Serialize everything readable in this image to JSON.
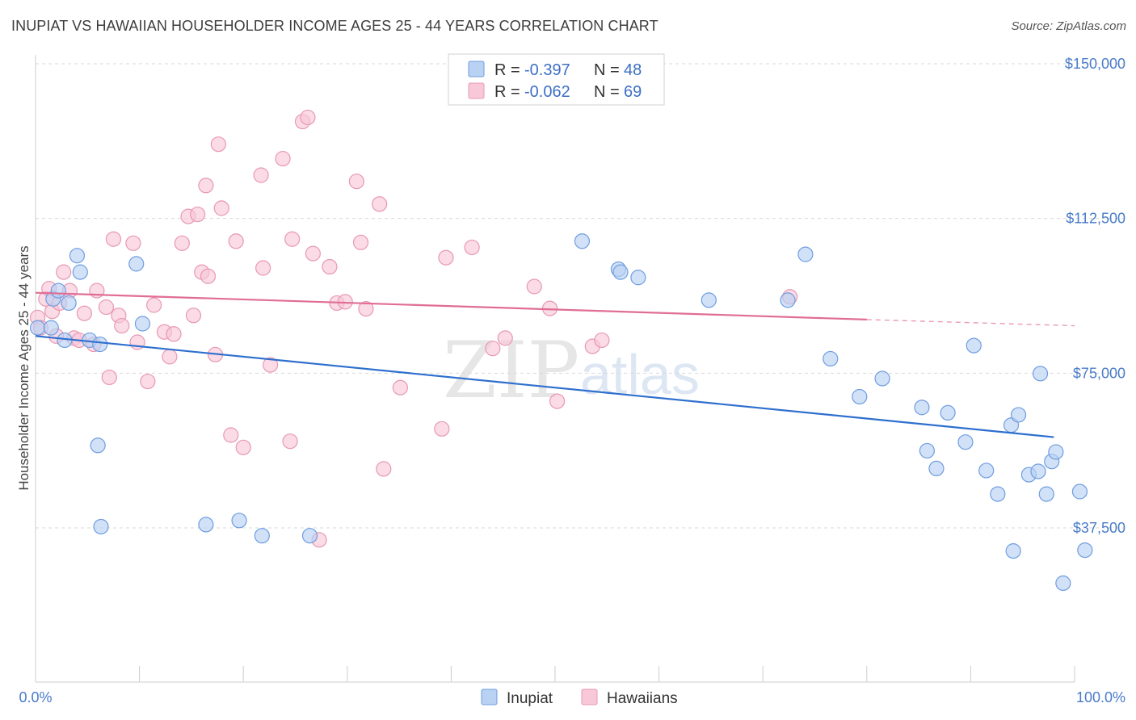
{
  "title": "INUPIAT VS HAWAIIAN HOUSEHOLDER INCOME AGES 25 - 44 YEARS CORRELATION CHART",
  "source": "Source: ZipAtlas.com",
  "watermark": {
    "zip": "ZIP",
    "atlas": "atlas"
  },
  "colors": {
    "inupiat_fill": "#b9d1f2",
    "inupiat_stroke": "#6f9de0",
    "inupiat_line": "#2e6fce",
    "hawaiian_fill": "#f8c8d8",
    "hawaiian_stroke": "#e898b4",
    "hawaiian_line": "#e06d95",
    "grid": "#d9d9d9",
    "axis_label": "#4a7cc9"
  },
  "legend": {
    "rows": [
      {
        "r_label": "R = ",
        "r_value": "-0.397",
        "n_label": "N = ",
        "n_value": "48"
      },
      {
        "r_label": "R = ",
        "r_value": "-0.062",
        "n_label": "N = ",
        "n_value": "69"
      }
    ]
  },
  "chart_data": {
    "type": "scatter",
    "title": "INUPIAT VS HAWAIIAN HOUSEHOLDER INCOME AGES 25 - 44 YEARS CORRELATION CHART",
    "xlabel": "",
    "ylabel": "Householder Income Ages 25 - 44 years",
    "xlim": [
      0,
      100
    ],
    "ylim": [
      10000,
      155000
    ],
    "x_tick_labels": [
      "0.0%",
      "100.0%"
    ],
    "y_ticks": [
      37500,
      75000,
      112500,
      150000
    ],
    "y_tick_labels": [
      "$37,500",
      "$75,000",
      "$112,500",
      "$150,000"
    ],
    "grid": true,
    "legend_position": "top-center",
    "series": [
      {
        "name": "Inupiat",
        "r": -0.397,
        "n": 48,
        "trend": {
          "x0": 0,
          "y0": 84000,
          "x1": 98,
          "y1": 59500
        },
        "points": [
          [
            0.2,
            86000
          ],
          [
            1.5,
            86000
          ],
          [
            1.7,
            93000
          ],
          [
            2.2,
            95000
          ],
          [
            3.2,
            92000
          ],
          [
            2.8,
            83000
          ],
          [
            4.0,
            103500
          ],
          [
            4.3,
            99500
          ],
          [
            5.2,
            83000
          ],
          [
            6.0,
            57500
          ],
          [
            6.2,
            82000
          ],
          [
            6.3,
            37800
          ],
          [
            9.7,
            101500
          ],
          [
            10.3,
            87000
          ],
          [
            16.4,
            38300
          ],
          [
            19.6,
            39300
          ],
          [
            21.8,
            35600
          ],
          [
            26.4,
            35600
          ],
          [
            52.6,
            107000
          ],
          [
            56.1,
            100200
          ],
          [
            56.3,
            99500
          ],
          [
            58.0,
            98200
          ],
          [
            64.8,
            92700
          ],
          [
            72.4,
            92700
          ],
          [
            74.1,
            103800
          ],
          [
            76.5,
            78500
          ],
          [
            79.3,
            69300
          ],
          [
            81.5,
            73700
          ],
          [
            85.3,
            66700
          ],
          [
            85.8,
            56200
          ],
          [
            86.7,
            51900
          ],
          [
            87.8,
            65400
          ],
          [
            89.5,
            58300
          ],
          [
            90.3,
            81700
          ],
          [
            91.5,
            51400
          ],
          [
            92.6,
            45700
          ],
          [
            93.9,
            62400
          ],
          [
            94.1,
            31900
          ],
          [
            94.6,
            64900
          ],
          [
            95.6,
            50400
          ],
          [
            96.5,
            51200
          ],
          [
            96.7,
            74900
          ],
          [
            97.3,
            45700
          ],
          [
            97.8,
            53600
          ],
          [
            98.2,
            55900
          ],
          [
            98.9,
            24100
          ],
          [
            101.0,
            32100
          ],
          [
            100.5,
            46300
          ]
        ]
      },
      {
        "name": "Hawaiians",
        "r": -0.062,
        "n": 69,
        "trend": {
          "x0": 0,
          "y0": 94500,
          "x1": 80,
          "y1": 88000,
          "dash_to_x": 100,
          "dash_to_y": 86500
        },
        "points": [
          [
            0.2,
            88500
          ],
          [
            0.5,
            86000
          ],
          [
            1.0,
            93000
          ],
          [
            1.3,
            95500
          ],
          [
            1.6,
            90000
          ],
          [
            2.0,
            84000
          ],
          [
            2.3,
            92000
          ],
          [
            2.7,
            99500
          ],
          [
            3.3,
            95000
          ],
          [
            3.7,
            83500
          ],
          [
            4.2,
            83000
          ],
          [
            4.7,
            89500
          ],
          [
            5.6,
            82000
          ],
          [
            5.9,
            95000
          ],
          [
            6.8,
            91000
          ],
          [
            7.1,
            74000
          ],
          [
            7.5,
            107500
          ],
          [
            8.0,
            89000
          ],
          [
            8.3,
            86500
          ],
          [
            9.4,
            106500
          ],
          [
            9.8,
            82500
          ],
          [
            10.8,
            73000
          ],
          [
            11.4,
            91500
          ],
          [
            12.4,
            85000
          ],
          [
            12.9,
            79000
          ],
          [
            13.3,
            84500
          ],
          [
            14.1,
            106500
          ],
          [
            14.7,
            113000
          ],
          [
            15.2,
            89000
          ],
          [
            15.6,
            113500
          ],
          [
            16.0,
            99500
          ],
          [
            16.4,
            120500
          ],
          [
            16.6,
            98500
          ],
          [
            17.3,
            79500
          ],
          [
            17.6,
            130500
          ],
          [
            17.9,
            115000
          ],
          [
            18.8,
            60000
          ],
          [
            19.3,
            107000
          ],
          [
            20.0,
            57000
          ],
          [
            21.7,
            123000
          ],
          [
            21.9,
            100500
          ],
          [
            22.6,
            77000
          ],
          [
            23.8,
            127000
          ],
          [
            24.5,
            58500
          ],
          [
            24.7,
            107500
          ],
          [
            25.7,
            136000
          ],
          [
            26.2,
            137000
          ],
          [
            26.7,
            104000
          ],
          [
            27.3,
            34600
          ],
          [
            28.3,
            100800
          ],
          [
            29.0,
            92000
          ],
          [
            29.8,
            92300
          ],
          [
            30.9,
            121500
          ],
          [
            31.3,
            106700
          ],
          [
            31.8,
            90600
          ],
          [
            33.1,
            116000
          ],
          [
            33.5,
            51800
          ],
          [
            35.1,
            71500
          ],
          [
            39.1,
            61500
          ],
          [
            39.5,
            103000
          ],
          [
            42.0,
            105500
          ],
          [
            44.0,
            81000
          ],
          [
            45.2,
            83500
          ],
          [
            48.0,
            96000
          ],
          [
            49.5,
            90700
          ],
          [
            50.2,
            68200
          ],
          [
            53.6,
            81500
          ],
          [
            54.5,
            83000
          ],
          [
            72.6,
            93500
          ]
        ]
      }
    ]
  }
}
